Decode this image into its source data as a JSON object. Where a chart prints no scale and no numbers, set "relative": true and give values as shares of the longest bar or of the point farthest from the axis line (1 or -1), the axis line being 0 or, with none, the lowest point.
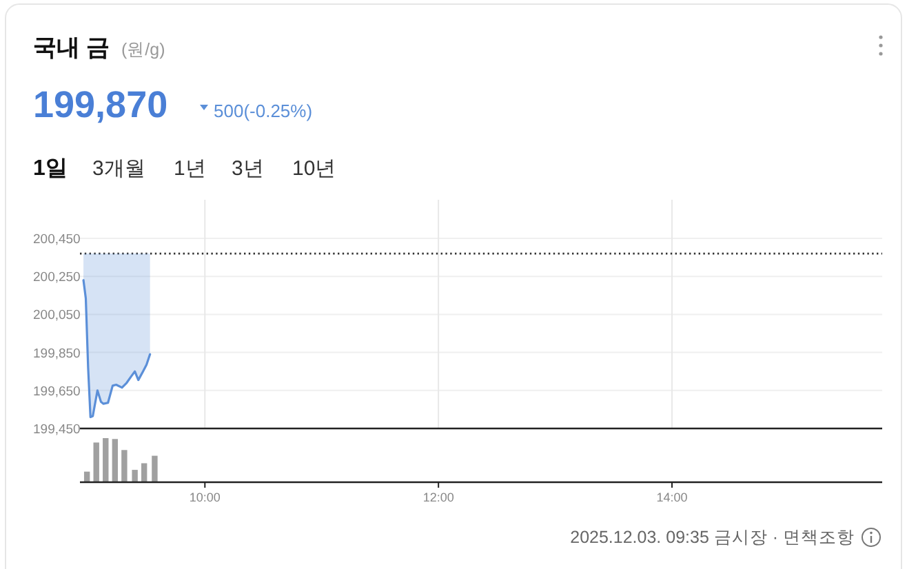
{
  "chart_data": [
    {
      "type": "line",
      "title": "국내 금",
      "subtitle": "(원/g)",
      "annotations": [
        "199,870",
        "500(-0.25%)",
        "1일",
        "3개월",
        "1년",
        "3년",
        "10년"
      ],
      "series": [
        {
          "color": "#5b8fd8",
          "x": [
            8.96,
            8.98,
            9.0,
            9.02,
            9.04,
            9.08,
            9.11,
            9.13,
            9.17,
            9.21,
            9.24,
            9.29,
            9.33,
            9.37,
            9.4,
            9.43,
            9.47,
            9.5,
            9.53
          ],
          "values": [
            200230,
            200135,
            199770,
            199510,
            199515,
            199650,
            199590,
            199580,
            199585,
            199675,
            199680,
            199665,
            199690,
            199725,
            199750,
            199705,
            199750,
            199785,
            199840
          ],
          "lower": [
            200230,
            200135,
            199770,
            199510,
            199515,
            199650,
            199590,
            199580,
            199585,
            199675,
            199680,
            199665,
            199690,
            199725,
            199750,
            199705,
            199750,
            199785,
            199840
          ],
          "upper": [
            200370,
            200370,
            200370,
            200370,
            200370,
            200370,
            200370,
            200370,
            200370,
            200370,
            200370,
            200370,
            200370,
            200370,
            200370,
            200370,
            200370,
            200370,
            200370
          ]
        }
      ],
      "ref_lines": [
        {
          "axis": "y",
          "value": 200370,
          "color": "#333333",
          "line_style": "dotted"
        }
      ],
      "xlim": [
        8.93,
        15.8
      ],
      "xticks": [
        {
          "value": 10,
          "label": null
        },
        {
          "value": 12,
          "label": null
        },
        {
          "value": 14,
          "label": null
        }
      ],
      "ylim": [
        199450,
        200450
      ],
      "yticks": [
        {
          "value": 199450,
          "label": "199,450"
        },
        {
          "value": 199650,
          "label": "199,650"
        },
        {
          "value": 199850,
          "label": "199,850"
        },
        {
          "value": 200050,
          "label": "200,050"
        },
        {
          "value": 200250,
          "label": "200,250"
        },
        {
          "value": 200450,
          "label": "200,450"
        }
      ],
      "tick_labels": "y",
      "grid": true,
      "marker": "none",
      "line_style": "solid"
    },
    {
      "type": "bar",
      "relative": true,
      "color": "#a0a0a0",
      "x": [
        8.99,
        9.07,
        9.15,
        9.23,
        9.31,
        9.4,
        9.48,
        9.57
      ],
      "values": [
        0.24,
        0.9,
        1,
        0.98,
        0.73,
        0.28,
        0.43,
        0.6
      ],
      "xlim": [
        8.93,
        15.8
      ],
      "xticks": [
        {
          "value": 10,
          "label": "10:00"
        },
        {
          "value": 12,
          "label": "12:00"
        },
        {
          "value": 14,
          "label": "14:00"
        }
      ],
      "tick_labels": "x",
      "annotations": [
        "2025.12.03. 09:35 금시장 · 면책조항"
      ]
    }
  ]
}
